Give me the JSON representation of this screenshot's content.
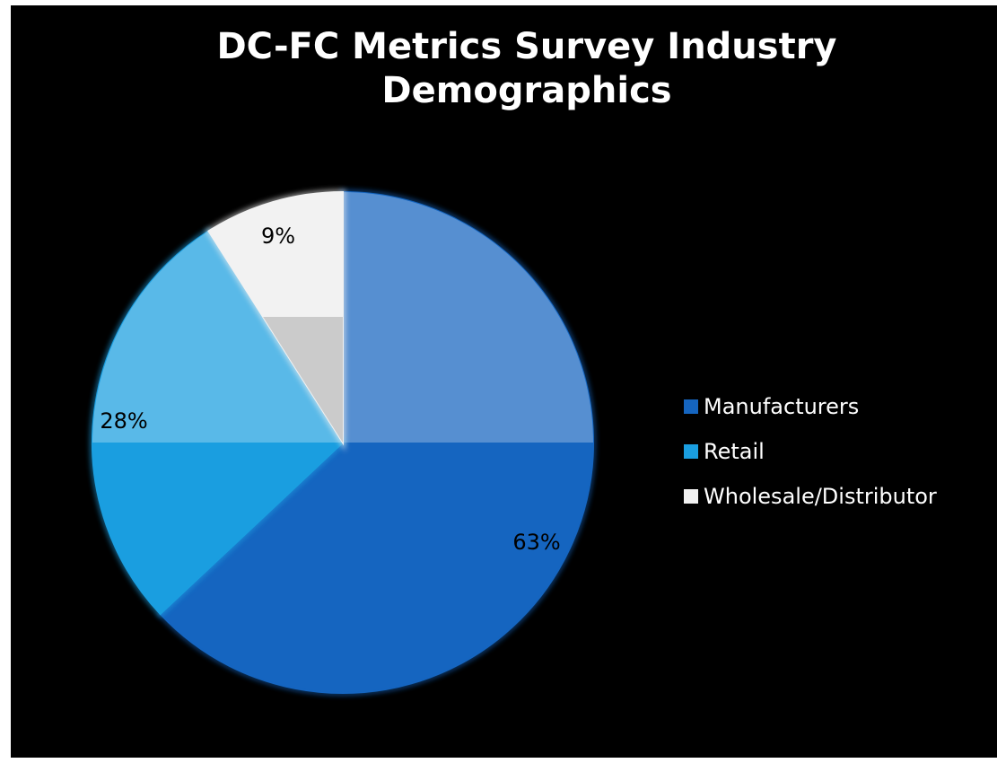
{
  "chart_data": {
    "type": "pie",
    "title": "DC-FC Metrics Survey Industry\nDemographics",
    "categories": [
      "Manufacturers",
      "Retail",
      "Wholesale/Distributor"
    ],
    "values": [
      63,
      28,
      9
    ],
    "value_labels": [
      "63%",
      "28%",
      "9%"
    ],
    "colors": [
      "#1565c0",
      "#1a9ee0",
      "#f2f2f2"
    ],
    "legend_position": "right",
    "background": "#000000"
  }
}
